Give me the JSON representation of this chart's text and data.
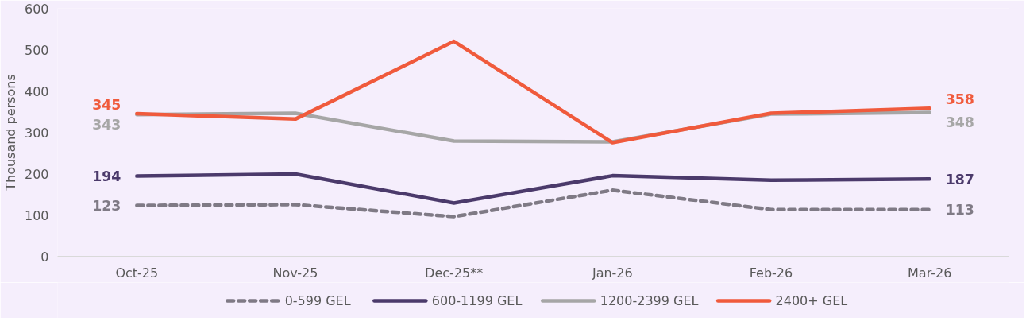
{
  "chart_data": {
    "type": "line",
    "ylabel": "Thousand persons",
    "categories": [
      "Oct-25",
      "Nov-25",
      "Dec-25**",
      "Jan-26",
      "Feb-26",
      "Mar-26"
    ],
    "ylim": [
      0,
      600
    ],
    "yticks": [
      0,
      100,
      200,
      300,
      400,
      500,
      600
    ],
    "grid": false,
    "legend": "bottom",
    "marker": "none",
    "series": [
      {
        "name": "0-599 GEL",
        "color": "#7f7a85",
        "line_style": "dashed",
        "values": [
          123,
          125,
          96,
          160,
          113,
          113
        ],
        "value_labels": [
          "123",
          null,
          null,
          null,
          null,
          "113"
        ]
      },
      {
        "name": "600-1199 GEL",
        "color": "#4b3a6b",
        "line_style": "solid",
        "values": [
          194,
          199,
          129,
          195,
          184,
          187
        ],
        "value_labels": [
          "194",
          null,
          null,
          null,
          null,
          "187"
        ]
      },
      {
        "name": "1200-2399 GEL",
        "color": "#a6a6a6",
        "line_style": "solid",
        "values": [
          343,
          346,
          279,
          277,
          344,
          348
        ],
        "value_labels": [
          "343",
          null,
          null,
          null,
          null,
          "348"
        ]
      },
      {
        "name": "2400+ GEL",
        "color": "#f05a3c",
        "line_style": "solid",
        "values": [
          345,
          332,
          520,
          275,
          346,
          358
        ],
        "value_labels": [
          "345",
          null,
          null,
          null,
          null,
          "358"
        ]
      }
    ]
  }
}
